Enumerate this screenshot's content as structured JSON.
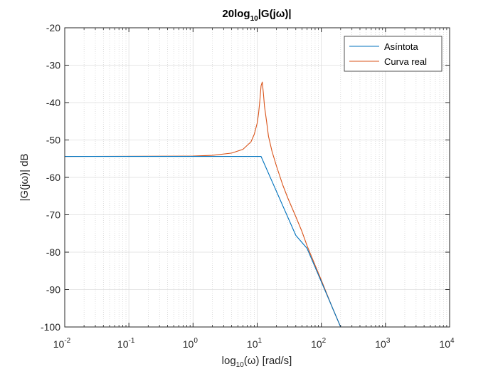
{
  "chart_data": {
    "type": "line",
    "title": "20log10|G(jω)|",
    "title_parts": {
      "pre": "20log",
      "sub": "10",
      "post": "|G(jω)|"
    },
    "xlabel": "log10(ω) [rad/s]",
    "xlabel_parts": {
      "pre": "log",
      "sub": "10",
      "post": "(ω) [rad/s]"
    },
    "ylabel": "|G(jω)| dB",
    "xscale": "log",
    "xlim": [
      0.01,
      10000
    ],
    "ylim": [
      -100,
      -20
    ],
    "x_ticks": [
      {
        "base": "10",
        "exp": "-2"
      },
      {
        "base": "10",
        "exp": "-1"
      },
      {
        "base": "10",
        "exp": "0"
      },
      {
        "base": "10",
        "exp": "1"
      },
      {
        "base": "10",
        "exp": "2"
      },
      {
        "base": "10",
        "exp": "3"
      },
      {
        "base": "10",
        "exp": "4"
      }
    ],
    "y_ticks": [
      "-20",
      "-30",
      "-40",
      "-50",
      "-60",
      "-70",
      "-80",
      "-90",
      "-100"
    ],
    "grid": true,
    "minor_grid": true,
    "legend": {
      "position": "top-right",
      "entries": [
        "Asíntota",
        "Curva real"
      ]
    },
    "series": [
      {
        "name": "Asíntota",
        "color": "#0072BD",
        "x": [
          0.01,
          1,
          11.5,
          40,
          60,
          100,
          200
        ],
        "y": [
          -54.4,
          -54.4,
          -54.4,
          -75.5,
          -79,
          -87.9,
          -100
        ]
      },
      {
        "name": "Curva real",
        "color": "#D95319",
        "x": [
          0.01,
          1,
          2,
          4,
          6,
          8,
          9,
          10,
          10.5,
          11,
          11.5,
          12,
          12.5,
          13,
          14,
          15,
          17,
          20,
          25,
          30,
          40,
          50,
          60,
          80,
          100,
          150,
          200
        ],
        "y": [
          -54.4,
          -54.3,
          -54.1,
          -53.5,
          -52.5,
          -50.5,
          -48.5,
          -45.5,
          -43,
          -39.5,
          -35.5,
          -34.5,
          -37.5,
          -41,
          -45,
          -49,
          -53,
          -57,
          -62,
          -65.5,
          -70.5,
          -74.5,
          -78.3,
          -83.5,
          -87.5,
          -95,
          -100
        ]
      }
    ]
  }
}
